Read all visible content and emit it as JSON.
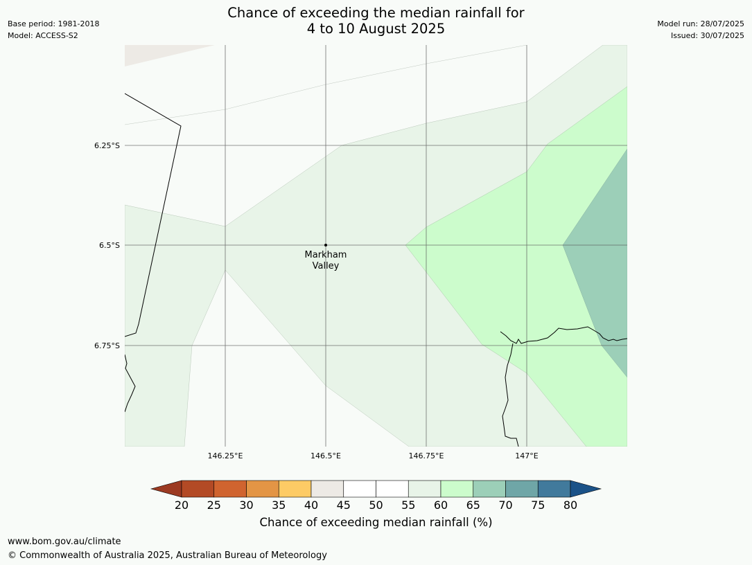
{
  "header": {
    "title_line1": "Chance of exceeding the median rainfall for",
    "title_line2": "4 to 10 August 2025",
    "base_period": "Base period: 1981-2018",
    "model": "Model: ACCESS-S2",
    "model_run": "Model run: 28/07/2025",
    "issued": "Issued: 30/07/2025"
  },
  "map": {
    "latitude_labels": [
      "6.25°S",
      "6.5°S",
      "6.75°S"
    ],
    "longitude_labels": [
      "146.25°E",
      "146.5°E",
      "146.75°E",
      "147°E"
    ],
    "place": {
      "name_line1": "Markham",
      "name_line2": "Valley"
    },
    "colors": {
      "band_45_50": "#f8fbf8",
      "band_55_60": "#e8f4e8",
      "band_60_65": "#ccfccc",
      "band_65_70": "#9ccfb8",
      "band_40_45": "#edeae5"
    }
  },
  "colorbar": {
    "ticks": [
      "20",
      "25",
      "30",
      "35",
      "40",
      "45",
      "50",
      "55",
      "60",
      "65",
      "70",
      "75",
      "80"
    ],
    "colors": [
      "#9c3a22",
      "#b34a25",
      "#d0642f",
      "#e39545",
      "#fdcb65",
      "#edeae5",
      "#ffffff",
      "#ffffff",
      "#e8f4e8",
      "#ccfccc",
      "#9ccfb8",
      "#6fa6a7",
      "#417a9c",
      "#1b5288"
    ],
    "label": "Chance of exceeding median rainfall (%)"
  },
  "footer": {
    "url": "www.bom.gov.au/climate",
    "copyright": "© Commonwealth of Australia 2025, Australian Bureau of Meteorology"
  }
}
